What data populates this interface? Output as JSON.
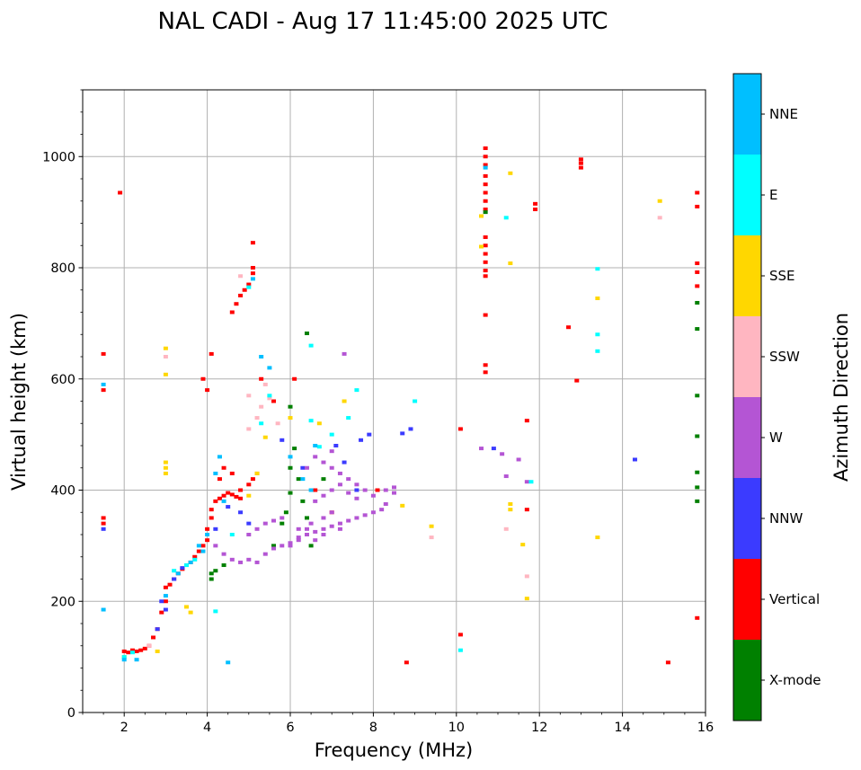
{
  "chart_data": {
    "type": "scatter",
    "title": "NAL CADI - Aug 17 11:45:00 2025 UTC",
    "xlabel": "Frequency (MHz)",
    "ylabel": "Virtual height (km)",
    "xlim": [
      1,
      16
    ],
    "ylim": [
      0,
      1120
    ],
    "xticks": [
      2,
      4,
      6,
      8,
      10,
      12,
      14,
      16
    ],
    "yticks": [
      0,
      200,
      400,
      600,
      800,
      1000
    ],
    "grid": true,
    "colorbar": {
      "label": "Azimuth Direction",
      "categories": [
        {
          "name": "X-mode",
          "color": "#008000"
        },
        {
          "name": "Vertical",
          "color": "#ff0000"
        },
        {
          "name": "NNW",
          "color": "#3b3bff"
        },
        {
          "name": "W",
          "color": "#b455d4"
        },
        {
          "name": "SSW",
          "color": "#ffb6c1"
        },
        {
          "name": "SSE",
          "color": "#ffd700"
        },
        {
          "name": "E",
          "color": "#00ffff"
        },
        {
          "name": "NNE",
          "color": "#00bfff"
        }
      ]
    },
    "series": [
      {
        "name": "Vertical",
        "points": [
          [
            1.5,
            645
          ],
          [
            1.5,
            580
          ],
          [
            1.5,
            350
          ],
          [
            1.5,
            340
          ],
          [
            1.9,
            935
          ],
          [
            2.0,
            110
          ],
          [
            2.1,
            108
          ],
          [
            2.2,
            112
          ],
          [
            2.3,
            110
          ],
          [
            2.4,
            112
          ],
          [
            2.5,
            115
          ],
          [
            2.6,
            120
          ],
          [
            2.7,
            135
          ],
          [
            2.8,
            150
          ],
          [
            2.9,
            180
          ],
          [
            3.0,
            200
          ],
          [
            3.0,
            225
          ],
          [
            3.1,
            230
          ],
          [
            3.2,
            240
          ],
          [
            3.3,
            250
          ],
          [
            3.4,
            258
          ],
          [
            3.5,
            265
          ],
          [
            3.6,
            270
          ],
          [
            3.7,
            280
          ],
          [
            3.8,
            290
          ],
          [
            3.9,
            300
          ],
          [
            4.0,
            310
          ],
          [
            4.0,
            330
          ],
          [
            4.1,
            350
          ],
          [
            4.1,
            365
          ],
          [
            4.2,
            380
          ],
          [
            4.3,
            385
          ],
          [
            4.4,
            390
          ],
          [
            4.5,
            395
          ],
          [
            4.6,
            392
          ],
          [
            4.7,
            388
          ],
          [
            4.8,
            385
          ],
          [
            4.3,
            420
          ],
          [
            4.4,
            440
          ],
          [
            4.6,
            430
          ],
          [
            4.8,
            400
          ],
          [
            5.0,
            410
          ],
          [
            5.1,
            420
          ],
          [
            5.2,
            430
          ],
          [
            3.9,
            600
          ],
          [
            4.0,
            580
          ],
          [
            4.1,
            645
          ],
          [
            4.6,
            720
          ],
          [
            4.7,
            735
          ],
          [
            4.8,
            750
          ],
          [
            4.9,
            760
          ],
          [
            5.0,
            770
          ],
          [
            5.1,
            790
          ],
          [
            5.1,
            800
          ],
          [
            5.1,
            845
          ],
          [
            5.3,
            600
          ],
          [
            5.6,
            560
          ],
          [
            6.1,
            600
          ],
          [
            6.6,
            400
          ],
          [
            7.0,
            360
          ],
          [
            8.1,
            400
          ],
          [
            8.8,
            90
          ],
          [
            10.1,
            510
          ],
          [
            10.1,
            140
          ],
          [
            10.7,
            1015
          ],
          [
            10.7,
            1000
          ],
          [
            10.7,
            985
          ],
          [
            10.7,
            965
          ],
          [
            10.7,
            950
          ],
          [
            10.7,
            935
          ],
          [
            10.7,
            920
          ],
          [
            10.7,
            905
          ],
          [
            10.7,
            855
          ],
          [
            10.7,
            840
          ],
          [
            10.7,
            825
          ],
          [
            10.7,
            810
          ],
          [
            10.7,
            795
          ],
          [
            10.7,
            785
          ],
          [
            10.7,
            715
          ],
          [
            10.7,
            625
          ],
          [
            10.7,
            612
          ],
          [
            11.7,
            525
          ],
          [
            11.7,
            365
          ],
          [
            11.9,
            915
          ],
          [
            11.9,
            905
          ],
          [
            12.7,
            693
          ],
          [
            12.9,
            597
          ],
          [
            13.0,
            995
          ],
          [
            13.0,
            988
          ],
          [
            13.0,
            980
          ],
          [
            15.1,
            90
          ],
          [
            15.8,
            935
          ],
          [
            15.8,
            910
          ],
          [
            15.8,
            808
          ],
          [
            15.8,
            792
          ],
          [
            15.8,
            767
          ],
          [
            15.8,
            170
          ]
        ]
      },
      {
        "name": "X-mode",
        "points": [
          [
            4.1,
            240
          ],
          [
            4.1,
            250
          ],
          [
            4.2,
            255
          ],
          [
            4.4,
            265
          ],
          [
            5.6,
            300
          ],
          [
            5.8,
            340
          ],
          [
            5.9,
            360
          ],
          [
            6.0,
            395
          ],
          [
            6.0,
            440
          ],
          [
            6.1,
            475
          ],
          [
            6.0,
            550
          ],
          [
            6.2,
            420
          ],
          [
            6.3,
            380
          ],
          [
            6.4,
            350
          ],
          [
            6.5,
            300
          ],
          [
            6.4,
            682
          ],
          [
            6.8,
            420
          ],
          [
            10.7,
            900
          ],
          [
            15.8,
            737
          ],
          [
            15.8,
            690
          ],
          [
            15.8,
            570
          ],
          [
            15.8,
            497
          ],
          [
            15.8,
            432
          ],
          [
            15.8,
            405
          ],
          [
            15.8,
            380
          ]
        ]
      },
      {
        "name": "NNW",
        "points": [
          [
            1.5,
            330
          ],
          [
            2.8,
            150
          ],
          [
            2.9,
            200
          ],
          [
            3.0,
            185
          ],
          [
            3.2,
            240
          ],
          [
            3.4,
            260
          ],
          [
            4.2,
            330
          ],
          [
            4.5,
            370
          ],
          [
            4.8,
            360
          ],
          [
            5.0,
            340
          ],
          [
            5.8,
            490
          ],
          [
            6.3,
            440
          ],
          [
            7.1,
            480
          ],
          [
            7.3,
            450
          ],
          [
            7.6,
            400
          ],
          [
            7.7,
            490
          ],
          [
            7.9,
            500
          ],
          [
            8.7,
            502
          ],
          [
            8.9,
            510
          ],
          [
            10.9,
            475
          ],
          [
            14.3,
            455
          ]
        ]
      },
      {
        "name": "W",
        "points": [
          [
            4.2,
            300
          ],
          [
            4.4,
            285
          ],
          [
            4.6,
            275
          ],
          [
            4.8,
            270
          ],
          [
            5.0,
            275
          ],
          [
            5.2,
            270
          ],
          [
            5.4,
            285
          ],
          [
            5.6,
            295
          ],
          [
            5.8,
            300
          ],
          [
            6.0,
            305
          ],
          [
            6.2,
            315
          ],
          [
            6.4,
            320
          ],
          [
            6.6,
            325
          ],
          [
            6.8,
            330
          ],
          [
            7.0,
            335
          ],
          [
            7.2,
            340
          ],
          [
            7.4,
            345
          ],
          [
            7.6,
            350
          ],
          [
            7.8,
            355
          ],
          [
            8.0,
            360
          ],
          [
            8.2,
            365
          ],
          [
            8.3,
            375
          ],
          [
            5.0,
            320
          ],
          [
            5.2,
            330
          ],
          [
            5.4,
            340
          ],
          [
            5.6,
            345
          ],
          [
            5.8,
            350
          ],
          [
            6.2,
            330
          ],
          [
            6.5,
            340
          ],
          [
            6.8,
            350
          ],
          [
            7.0,
            360
          ],
          [
            6.0,
            300
          ],
          [
            6.2,
            310
          ],
          [
            6.4,
            330
          ],
          [
            6.6,
            310
          ],
          [
            6.8,
            320
          ],
          [
            7.2,
            330
          ],
          [
            6.4,
            440
          ],
          [
            6.6,
            460
          ],
          [
            6.8,
            450
          ],
          [
            7.0,
            470
          ],
          [
            7.0,
            440
          ],
          [
            7.2,
            430
          ],
          [
            7.4,
            420
          ],
          [
            7.6,
            410
          ],
          [
            7.8,
            400
          ],
          [
            6.6,
            380
          ],
          [
            6.8,
            390
          ],
          [
            7.0,
            400
          ],
          [
            7.2,
            410
          ],
          [
            7.4,
            395
          ],
          [
            7.6,
            385
          ],
          [
            8.0,
            390
          ],
          [
            8.3,
            400
          ],
          [
            8.5,
            405
          ],
          [
            8.5,
            395
          ],
          [
            7.3,
            645
          ],
          [
            10.6,
            475
          ],
          [
            11.1,
            465
          ],
          [
            11.2,
            425
          ],
          [
            11.5,
            455
          ],
          [
            11.7,
            415
          ]
        ]
      },
      {
        "name": "SSW",
        "points": [
          [
            2.6,
            120
          ],
          [
            3.0,
            640
          ],
          [
            5.0,
            510
          ],
          [
            5.2,
            530
          ],
          [
            5.3,
            550
          ],
          [
            5.5,
            565
          ],
          [
            5.4,
            590
          ],
          [
            5.7,
            520
          ],
          [
            5.0,
            570
          ],
          [
            4.8,
            785
          ],
          [
            9.4,
            315
          ],
          [
            11.2,
            330
          ],
          [
            11.7,
            245
          ],
          [
            14.9,
            890
          ]
        ]
      },
      {
        "name": "SSE",
        "points": [
          [
            2.0,
            100
          ],
          [
            2.8,
            110
          ],
          [
            3.0,
            655
          ],
          [
            3.0,
            608
          ],
          [
            3.0,
            450
          ],
          [
            3.0,
            440
          ],
          [
            3.0,
            430
          ],
          [
            3.5,
            190
          ],
          [
            3.6,
            180
          ],
          [
            5.0,
            390
          ],
          [
            5.2,
            430
          ],
          [
            5.4,
            495
          ],
          [
            6.0,
            530
          ],
          [
            6.7,
            520
          ],
          [
            7.3,
            560
          ],
          [
            8.7,
            372
          ],
          [
            9.4,
            335
          ],
          [
            10.6,
            893
          ],
          [
            10.6,
            838
          ],
          [
            11.3,
            970
          ],
          [
            11.3,
            808
          ],
          [
            11.3,
            375
          ],
          [
            11.3,
            365
          ],
          [
            11.6,
            302
          ],
          [
            11.7,
            205
          ],
          [
            13.4,
            745
          ],
          [
            13.4,
            315
          ],
          [
            14.9,
            920
          ]
        ]
      },
      {
        "name": "E",
        "points": [
          [
            2.0,
            100
          ],
          [
            2.2,
            108
          ],
          [
            3.2,
            255
          ],
          [
            3.5,
            265
          ],
          [
            3.7,
            275
          ],
          [
            4.2,
            182
          ],
          [
            4.6,
            320
          ],
          [
            5.0,
            765
          ],
          [
            5.3,
            520
          ],
          [
            5.5,
            570
          ],
          [
            6.5,
            525
          ],
          [
            6.5,
            660
          ],
          [
            6.7,
            478
          ],
          [
            7.0,
            500
          ],
          [
            7.4,
            530
          ],
          [
            7.6,
            580
          ],
          [
            9.0,
            560
          ],
          [
            10.1,
            112
          ],
          [
            11.2,
            890
          ],
          [
            11.8,
            415
          ],
          [
            13.4,
            798
          ],
          [
            13.4,
            650
          ],
          [
            13.4,
            680
          ]
        ]
      },
      {
        "name": "NNE",
        "points": [
          [
            1.5,
            590
          ],
          [
            1.5,
            185
          ],
          [
            2.0,
            95
          ],
          [
            2.3,
            95
          ],
          [
            3.0,
            210
          ],
          [
            3.3,
            250
          ],
          [
            3.6,
            270
          ],
          [
            3.8,
            300
          ],
          [
            3.9,
            290
          ],
          [
            4.0,
            320
          ],
          [
            4.2,
            430
          ],
          [
            4.3,
            460
          ],
          [
            4.4,
            380
          ],
          [
            4.5,
            90
          ],
          [
            5.1,
            780
          ],
          [
            5.3,
            640
          ],
          [
            5.5,
            620
          ],
          [
            6.0,
            460
          ],
          [
            6.3,
            420
          ],
          [
            6.5,
            400
          ],
          [
            6.6,
            480
          ],
          [
            10.7,
            980
          ]
        ]
      }
    ]
  }
}
